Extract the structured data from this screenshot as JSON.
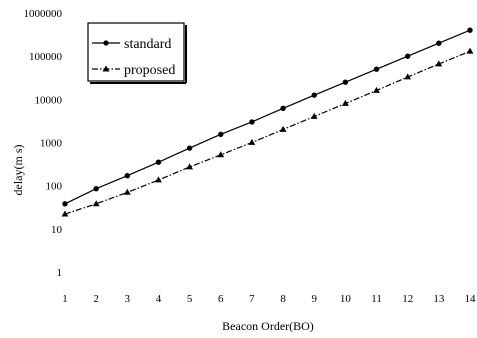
{
  "chart_data": {
    "type": "line",
    "title": "",
    "xlabel": "Beacon Order(BO)",
    "ylabel": "delay(m s)",
    "yscale": "log",
    "ylim": [
      1,
      1000000
    ],
    "xlim": [
      1,
      14
    ],
    "x": [
      1,
      2,
      3,
      4,
      5,
      6,
      7,
      8,
      9,
      10,
      11,
      12,
      13,
      14
    ],
    "x_tick_labels": [
      "1",
      "2",
      "3",
      "4",
      "5",
      "6",
      "7",
      "8",
      "9",
      "10",
      "11",
      "12",
      "13",
      "14"
    ],
    "y_tick_labels": [
      "1",
      "10",
      "100",
      "1000",
      "10000",
      "100000",
      "1000000"
    ],
    "y_tick_values": [
      1,
      10,
      100,
      1000,
      10000,
      100000,
      1000000
    ],
    "grid": false,
    "legend_position": "top-left",
    "series": [
      {
        "name": "standard",
        "marker": "circle",
        "line": "solid",
        "values": [
          38,
          85,
          170,
          350,
          740,
          1550,
          3000,
          6200,
          12500,
          25000,
          50000,
          100000,
          200000,
          400000
        ]
      },
      {
        "name": "proposed",
        "marker": "triangle",
        "line": "dash-dot",
        "values": [
          22,
          38,
          70,
          135,
          270,
          520,
          1000,
          2000,
          4000,
          8000,
          16000,
          33000,
          66000,
          130000
        ]
      }
    ]
  }
}
